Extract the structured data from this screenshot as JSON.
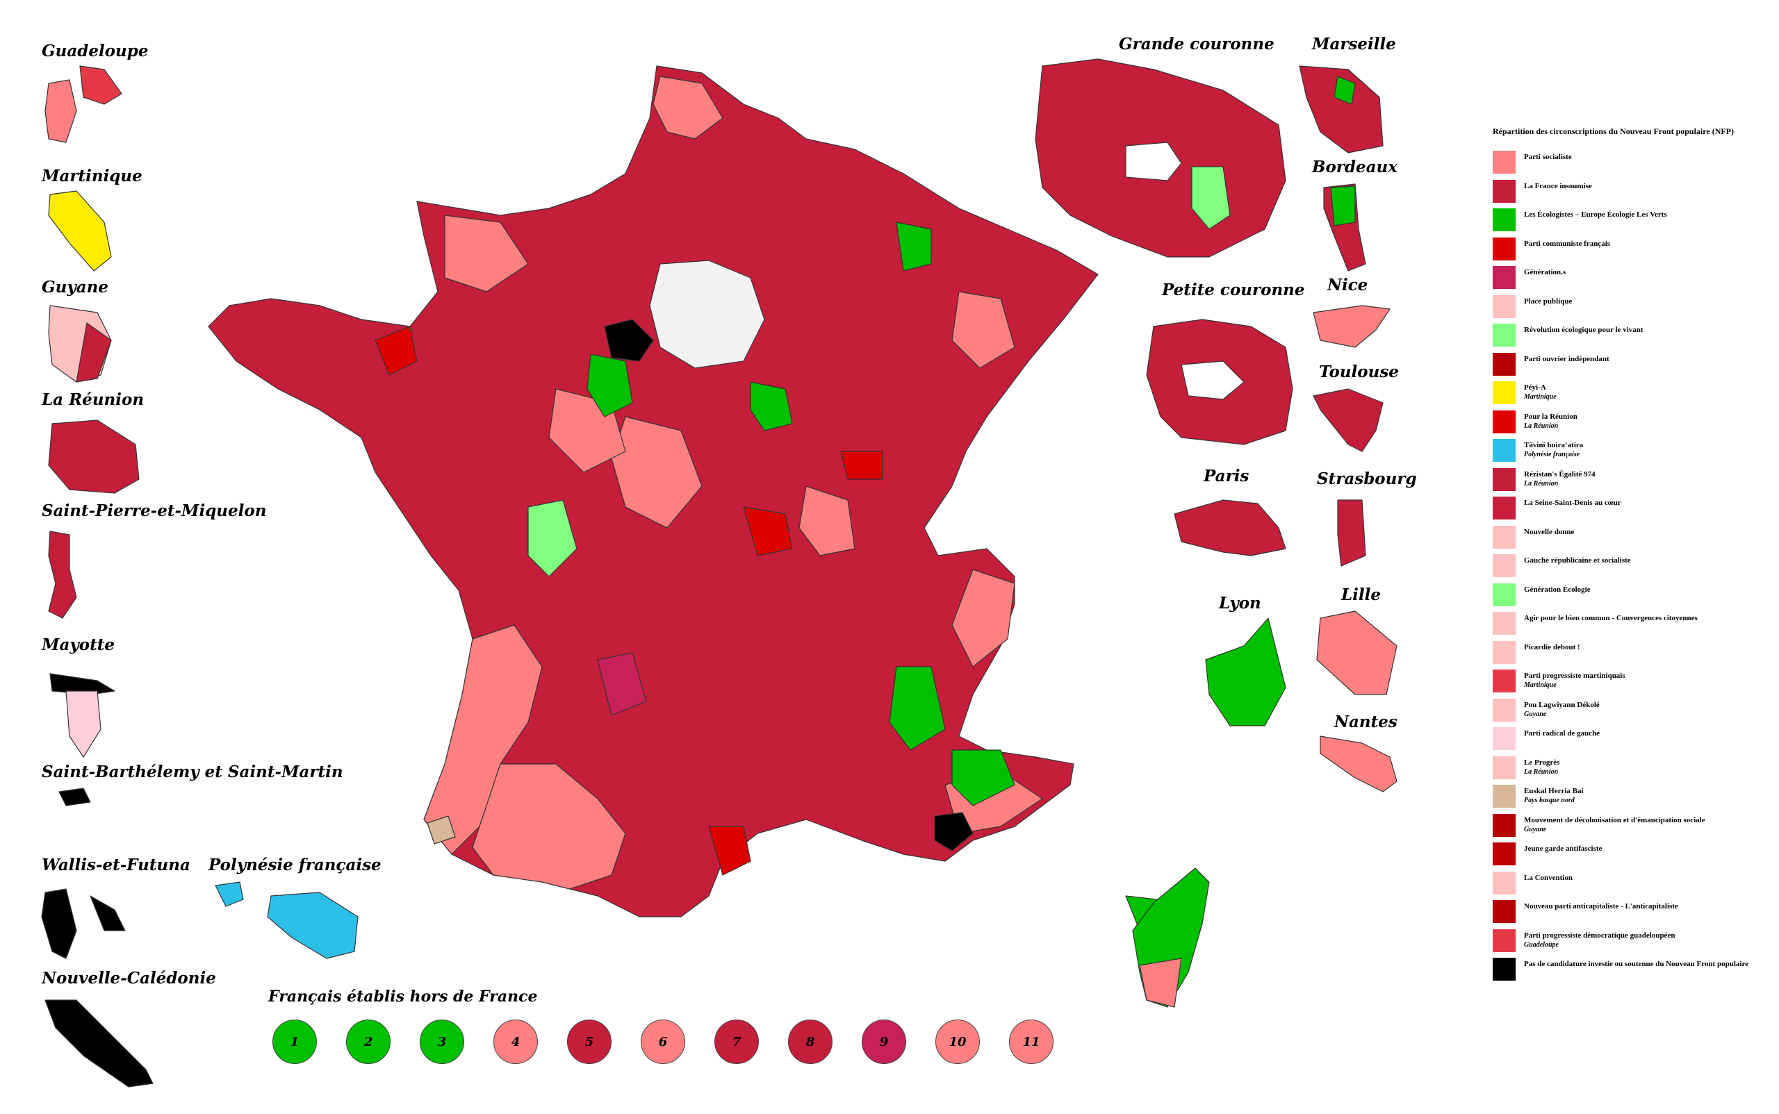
{
  "colors": {
    "ps": "#ff8080",
    "lfi": "#c41e3a",
    "eelv": "#00c000",
    "pcf": "#dd0000",
    "generations": "#c8205a",
    "place_publique": "#ffc0c0",
    "rev_eco": "#80ff80",
    "poi": "#b50000",
    "peyi_a": "#ffed00",
    "pour_reunion": "#e00000",
    "tavini": "#2cc0e8",
    "rezistans": "#c41e3a",
    "ssd_coeur": "#c8203c",
    "nouvelle_donne": "#ffbfbf",
    "grs": "#ffc0c0",
    "generation_ecologie": "#80ff80",
    "agir_bien_commun": "#ffc0c0",
    "picardie_debout": "#ffc0c0",
    "ppm": "#e63946",
    "pou_lagwiyann": "#ffc0c0",
    "prg": "#ffd0dc",
    "le_progres": "#ffc0c0",
    "euskal_herria": "#d8b898",
    "mdes": "#b50000",
    "jeune_garde": "#c00000",
    "la_convention": "#ffc0c0",
    "npa": "#b50000",
    "ppdg": "#e63946",
    "none": "#000000",
    "paris_empty": "#f2f2f2",
    "border": "#333333"
  },
  "titles": {
    "guadeloupe": "Guadeloupe",
    "martinique": "Martinique",
    "guyane": "Guyane",
    "reunion": "La Réunion",
    "spm": "Saint-Pierre-et-Miquelon",
    "mayotte": "Mayotte",
    "sbsm": "Saint-Barthélemy et Saint-Martin",
    "wallis": "Wallis-et-Futuna",
    "polynesie": "Polynésie française",
    "caledonie": "Nouvelle-Calédonie",
    "grande_couronne": "Grande couronne",
    "marseille": "Marseille",
    "bordeaux": "Bordeaux",
    "petite_couronne": "Petite couronne",
    "nice": "Nice",
    "toulouse": "Toulouse",
    "paris": "Paris",
    "strasbourg": "Strasbourg",
    "lyon": "Lyon",
    "lille": "Lille",
    "nantes": "Nantes"
  },
  "abroad": {
    "title": "Français établis hors de France",
    "circles": [
      {
        "num": "1",
        "color": "#00c000"
      },
      {
        "num": "2",
        "color": "#00c000"
      },
      {
        "num": "3",
        "color": "#00c000"
      },
      {
        "num": "4",
        "color": "#ff8080"
      },
      {
        "num": "5",
        "color": "#c41e3a"
      },
      {
        "num": "6",
        "color": "#ff8080"
      },
      {
        "num": "7",
        "color": "#c41e3a"
      },
      {
        "num": "8",
        "color": "#c41e3a"
      },
      {
        "num": "9",
        "color": "#c8205a"
      },
      {
        "num": "10",
        "color": "#ff8080"
      },
      {
        "num": "11",
        "color": "#ff8080"
      }
    ]
  },
  "legend": {
    "title": "Répartition des circonscriptions du Nouveau Front populaire (NFP)",
    "items": [
      {
        "label": "Parti socialiste",
        "sub": "",
        "color": "#ff8080"
      },
      {
        "label": "La France insoumise",
        "sub": "",
        "color": "#c41e3a"
      },
      {
        "label": "Les Écologistes – Europe Écologie Les Verts",
        "sub": "",
        "color": "#00c000"
      },
      {
        "label": "Parti communiste français",
        "sub": "",
        "color": "#dd0000"
      },
      {
        "label": "Génération.s",
        "sub": "",
        "color": "#c8205a"
      },
      {
        "label": "Place publique",
        "sub": "",
        "color": "#ffc0c0"
      },
      {
        "label": "Révolution écologique pour le vivant",
        "sub": "",
        "color": "#80ff80"
      },
      {
        "label": "Parti ouvrier indépendant",
        "sub": "",
        "color": "#b50000"
      },
      {
        "label": "Péyi-A",
        "sub": "Martinique",
        "color": "#ffed00"
      },
      {
        "label": "Pour la Réunion",
        "sub": "La Réunion",
        "color": "#e00000"
      },
      {
        "label": "Tāvini huiraʻatira",
        "sub": "Polynésie française",
        "color": "#2cc0e8"
      },
      {
        "label": "Rézistan's Égalité 974",
        "sub": "La Réunion",
        "color": "#c41e3a"
      },
      {
        "label": "La Seine-Saint-Denis au cœur",
        "sub": "",
        "color": "#c8203c"
      },
      {
        "label": "Nouvelle donne",
        "sub": "",
        "color": "#ffbfbf"
      },
      {
        "label": "Gauche républicaine et socialiste",
        "sub": "",
        "color": "#ffc0c0"
      },
      {
        "label": "Génération Écologie",
        "sub": "",
        "color": "#80ff80"
      },
      {
        "label": "Agir pour le bien commun - Convergences citoyennes",
        "sub": "",
        "color": "#ffc0c0"
      },
      {
        "label": "Picardie debout !",
        "sub": "",
        "color": "#ffc0c0"
      },
      {
        "label": "Parti progressiste martiniquais",
        "sub": "Martinique",
        "color": "#e63946"
      },
      {
        "label": "Pou Lagwiyann Dékolé",
        "sub": "Guyane",
        "color": "#ffc0c0"
      },
      {
        "label": "Parti radical de gauche",
        "sub": "",
        "color": "#ffd0dc"
      },
      {
        "label": "Le Progrès",
        "sub": "La Réunion",
        "color": "#ffc0c0"
      },
      {
        "label": "Euskal Herria Bai",
        "sub": "Pays basque nord",
        "color": "#d8b898"
      },
      {
        "label": "Mouvement de décolonisation et d'émancipation sociale",
        "sub": "Guyane",
        "color": "#b50000"
      },
      {
        "label": "Jeune garde antifasciste",
        "sub": "",
        "color": "#c00000"
      },
      {
        "label": "La Convention",
        "sub": "",
        "color": "#ffc0c0"
      },
      {
        "label": "Nouveau parti anticapitaliste - L'anticapitaliste",
        "sub": "",
        "color": "#b50000"
      },
      {
        "label": "Parti progressiste démocratique guadeloupéen",
        "sub": "Guadeloupe",
        "color": "#e63946"
      },
      {
        "label": "Pas de candidature investie ou soutenue du Nouveau Front populaire",
        "sub": "",
        "color": "#000000"
      }
    ]
  }
}
